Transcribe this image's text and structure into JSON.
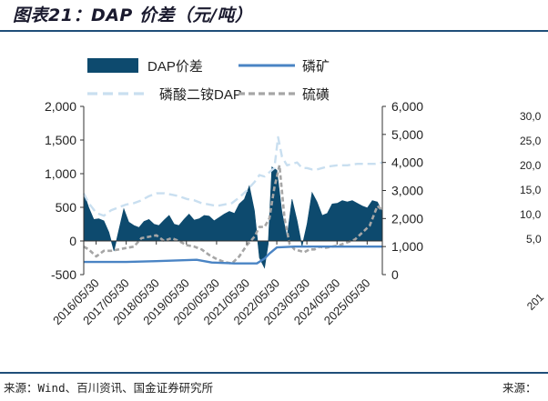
{
  "title": "图表21：DAP 价差（元/吨）",
  "source_left": "来源：Wind、百川资讯、国金证券研究所",
  "source_right": "来源：",
  "right_fragment": {
    "ticks": [
      "30,0",
      "25,0",
      "20,0",
      "15,0",
      "10,0",
      "5,0"
    ],
    "xtick": "201"
  },
  "colors": {
    "spread": "#0d4a6e",
    "rock": "#4a84c4",
    "dap": "#c9dff0",
    "sulfur": "#a6a6a6",
    "rule": "#1f4e79"
  },
  "chart_data": {
    "type": "area",
    "legend": [
      {
        "name": "DAP价差",
        "style": "area",
        "color": "#0d4a6e"
      },
      {
        "name": "磷矿",
        "style": "line",
        "color": "#4a84c4"
      },
      {
        "name": "磷酸二铵DAP",
        "style": "dash",
        "color": "#c9dff0"
      },
      {
        "name": "硫磺",
        "style": "dash",
        "color": "#a6a6a6"
      }
    ],
    "legend_placement": "top",
    "x_range": [
      "2016/01/01",
      "2025/11/30"
    ],
    "xticks": [
      "2016/05/30",
      "2017/05/30",
      "2018/05/30",
      "2019/05/30",
      "2020/05/30",
      "2021/05/30",
      "2022/05/30",
      "2023/05/30",
      "2024/05/30",
      "2025/05/30"
    ],
    "y_left": {
      "min": -500,
      "max": 2000,
      "ticks": [
        -500,
        0,
        500,
        1000,
        1500,
        2000
      ],
      "labels": [
        "-500",
        "0",
        "500",
        "1,000",
        "1,500",
        "2,000"
      ]
    },
    "y_right": {
      "min": 0,
      "max": 6000,
      "ticks": [
        0,
        1000,
        2000,
        3000,
        4000,
        5000,
        6000
      ],
      "labels": [
        "0",
        "1,000",
        "2,000",
        "3,000",
        "4,000",
        "5,000",
        "6,000"
      ]
    },
    "grid": false,
    "series": [
      {
        "name": "DAP价差",
        "axis": "left",
        "x": [
          "2016/01/01",
          "2016/03/01",
          "2016/05/01",
          "2016/07/01",
          "2016/09/01",
          "2016/11/01",
          "2017/01/01",
          "2017/03/01",
          "2017/05/01",
          "2017/07/01",
          "2017/09/01",
          "2017/11/01",
          "2018/01/01",
          "2018/03/01",
          "2018/05/01",
          "2018/07/01",
          "2018/09/01",
          "2018/11/01",
          "2019/01/01",
          "2019/03/01",
          "2019/05/01",
          "2019/07/01",
          "2019/09/01",
          "2019/11/01",
          "2020/01/01",
          "2020/03/01",
          "2020/05/01",
          "2020/07/01",
          "2020/09/01",
          "2020/11/01",
          "2021/01/01",
          "2021/03/01",
          "2021/05/01",
          "2021/07/01",
          "2021/09/01",
          "2021/11/01",
          "2022/01/01",
          "2022/02/15",
          "2022/04/01",
          "2022/06/01",
          "2022/08/01",
          "2022/10/01",
          "2022/12/01",
          "2023/02/01",
          "2023/04/01",
          "2023/06/01",
          "2023/08/01",
          "2023/10/01",
          "2023/12/01",
          "2024/02/01",
          "2024/04/01",
          "2024/06/01",
          "2024/08/01",
          "2024/10/01",
          "2024/12/01",
          "2025/02/01",
          "2025/04/01",
          "2025/06/01",
          "2025/08/01",
          "2025/10/01",
          "2025/11/30"
        ],
        "values": [
          720,
          500,
          320,
          330,
          300,
          130,
          -150,
          160,
          480,
          280,
          230,
          200,
          290,
          320,
          250,
          230,
          310,
          380,
          250,
          230,
          320,
          400,
          310,
          330,
          380,
          370,
          300,
          350,
          400,
          440,
          410,
          550,
          620,
          820,
          450,
          -250,
          -400,
          -50,
          1100,
          1050,
          420,
          60,
          620,
          300,
          -80,
          250,
          720,
          580,
          380,
          410,
          550,
          560,
          600,
          580,
          600,
          560,
          520,
          490,
          600,
          580,
          430
        ]
      },
      {
        "name": "磷矿",
        "axis": "right",
        "x": [
          "2016/01/01",
          "2017/06/01",
          "2018/06/01",
          "2019/10/01",
          "2020/04/01",
          "2021/01/01",
          "2021/10/01",
          "2022/01/01",
          "2022/03/01",
          "2022/06/01",
          "2023/01/01",
          "2024/06/01",
          "2025/11/30"
        ],
        "values": [
          450,
          450,
          480,
          530,
          430,
          400,
          400,
          570,
          750,
          970,
          1000,
          1000,
          1000
        ]
      },
      {
        "name": "磷酸二铵DAP",
        "axis": "right",
        "x": [
          "2016/01/01",
          "2016/03/01",
          "2016/06/01",
          "2016/09/01",
          "2016/12/01",
          "2017/03/01",
          "2017/06/01",
          "2017/09/01",
          "2017/12/01",
          "2018/03/01",
          "2018/06/01",
          "2018/09/01",
          "2018/12/01",
          "2019/03/01",
          "2019/06/01",
          "2019/09/01",
          "2019/12/01",
          "2020/03/01",
          "2020/06/01",
          "2020/09/01",
          "2020/12/01",
          "2021/03/01",
          "2021/06/01",
          "2021/09/01",
          "2021/11/01",
          "2022/01/01",
          "2022/03/01",
          "2022/05/01",
          "2022/06/15",
          "2022/08/01",
          "2022/10/01",
          "2022/12/01",
          "2023/02/01",
          "2023/04/01",
          "2023/06/01",
          "2023/08/01",
          "2023/10/01",
          "2023/12/01",
          "2024/02/01",
          "2024/06/01",
          "2024/10/01",
          "2025/02/01",
          "2025/06/01",
          "2025/09/01",
          "2025/11/30"
        ],
        "values": [
          2900,
          2550,
          2200,
          2100,
          2300,
          2400,
          2500,
          2550,
          2650,
          2800,
          2900,
          2900,
          2850,
          2800,
          2700,
          2650,
          2550,
          2500,
          2450,
          2500,
          2550,
          2750,
          3000,
          3300,
          3550,
          3500,
          3650,
          3800,
          4900,
          4200,
          3900,
          3950,
          4000,
          3800,
          3800,
          3750,
          3750,
          3800,
          3850,
          3900,
          3900,
          3950,
          3950,
          3950,
          4000
        ]
      },
      {
        "name": "硫磺",
        "axis": "right",
        "x": [
          "2016/01/01",
          "2016/03/01",
          "2016/06/01",
          "2016/09/01",
          "2016/12/01",
          "2017/03/01",
          "2017/06/01",
          "2017/09/01",
          "2017/12/01",
          "2018/03/01",
          "2018/06/01",
          "2018/09/01",
          "2018/12/01",
          "2019/03/01",
          "2019/06/01",
          "2019/09/01",
          "2019/12/01",
          "2020/03/01",
          "2020/06/01",
          "2020/09/01",
          "2020/12/01",
          "2021/03/01",
          "2021/06/01",
          "2021/09/01",
          "2021/11/01",
          "2022/01/01",
          "2022/03/01",
          "2022/05/01",
          "2022/07/01",
          "2022/09/01",
          "2022/11/01",
          "2023/01/01",
          "2023/03/01",
          "2023/05/01",
          "2023/07/01",
          "2023/09/01",
          "2023/11/01",
          "2024/01/01",
          "2024/04/01",
          "2024/07/01",
          "2024/10/01",
          "2025/01/01",
          "2025/04/01",
          "2025/07/01",
          "2025/10/01",
          "2025/11/30"
        ],
        "values": [
          1000,
          900,
          650,
          850,
          850,
          900,
          950,
          1000,
          1300,
          1350,
          1400,
          1200,
          1300,
          1200,
          1050,
          1000,
          900,
          700,
          550,
          450,
          400,
          650,
          1050,
          1350,
          1700,
          1700,
          2000,
          3100,
          3900,
          2000,
          1100,
          900,
          850,
          800,
          900,
          900,
          1000,
          950,
          1000,
          1050,
          1150,
          1250,
          1500,
          1750,
          2450,
          2300
        ]
      }
    ]
  }
}
